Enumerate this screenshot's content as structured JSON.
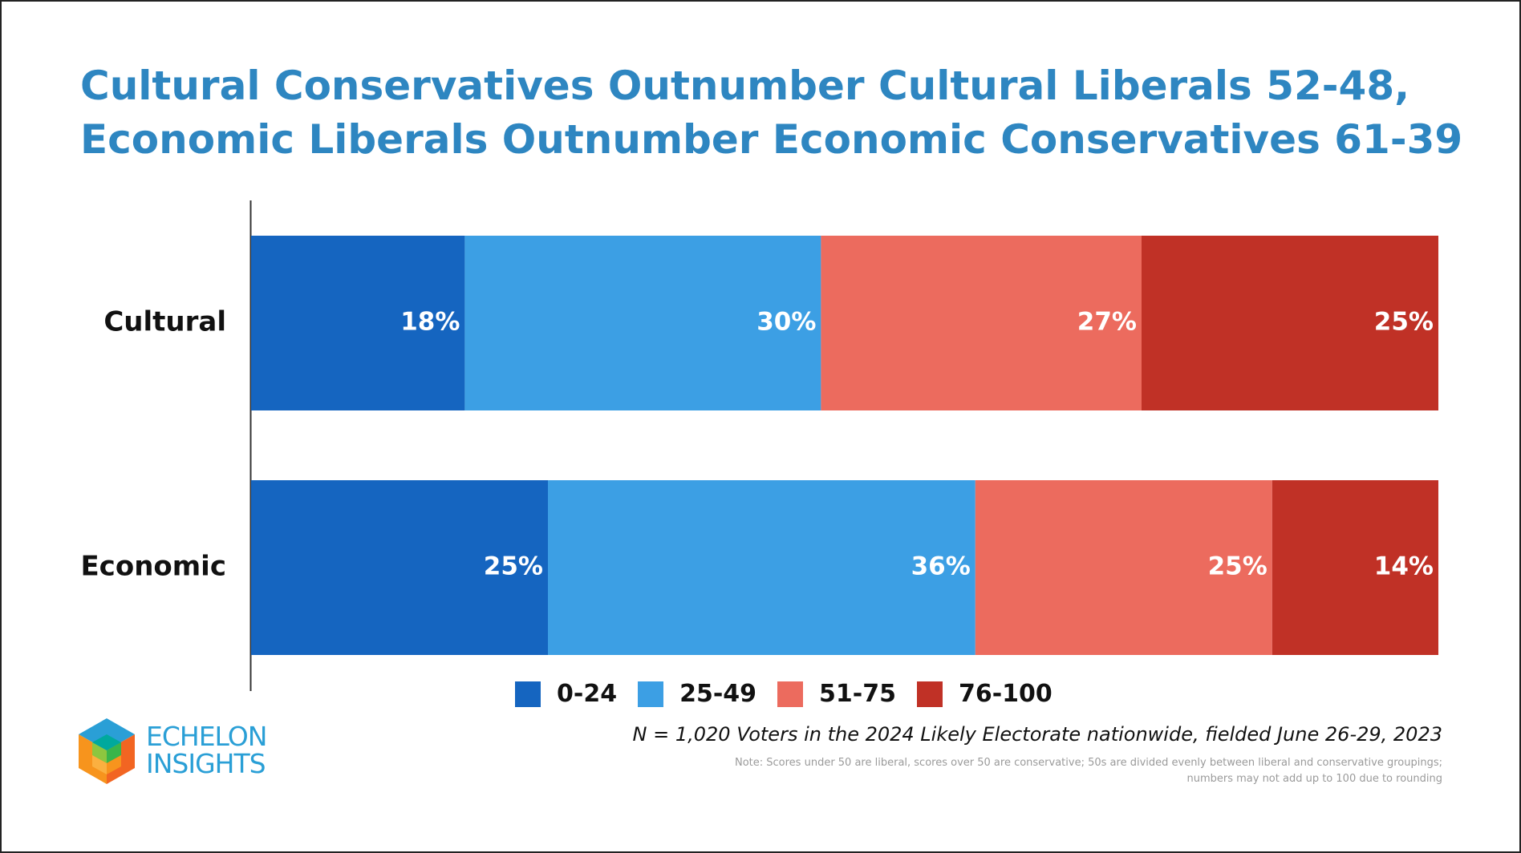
{
  "title": {
    "line1": "Cultural Conservatives Outnumber Cultural Liberals 52-48,",
    "line2": "Economic Liberals Outnumber Economic Conservatives 61-39"
  },
  "colors": {
    "title": "#2e86c1",
    "seg_0_24": "#1565c0",
    "seg_25_49": "#3c9fe4",
    "seg_51_75": "#ec6b5e",
    "seg_76_100": "#c03126",
    "logo_text": "#2a9fd6"
  },
  "chart_data": {
    "type": "bar",
    "orientation": "horizontal",
    "stacked": true,
    "categories": [
      "Cultural",
      "Economic"
    ],
    "series": [
      {
        "name": "0-24",
        "values": [
          18,
          25
        ],
        "labels": [
          "18%",
          "25%"
        ],
        "color": "#1565c0"
      },
      {
        "name": "25-49",
        "values": [
          30,
          36
        ],
        "labels": [
          "30%",
          "36%"
        ],
        "color": "#3c9fe4"
      },
      {
        "name": "51-75",
        "values": [
          27,
          25
        ],
        "labels": [
          "27%",
          "25%"
        ],
        "color": "#ec6b5e"
      },
      {
        "name": "76-100",
        "values": [
          25,
          14
        ],
        "labels": [
          "25%",
          "14%"
        ],
        "color": "#c03126"
      }
    ],
    "xlim": [
      0,
      100
    ],
    "grid": false,
    "legend_position": "bottom-center"
  },
  "legend": {
    "items": [
      {
        "label": "0-24",
        "color": "#1565c0"
      },
      {
        "label": "25-49",
        "color": "#3c9fe4"
      },
      {
        "label": "51-75",
        "color": "#ec6b5e"
      },
      {
        "label": "76-100",
        "color": "#c03126"
      }
    ]
  },
  "source": "N = 1,020 Voters in the 2024 Likely Electorate nationwide, fielded June 26-29, 2023",
  "note": {
    "line1": "Note: Scores under 50 are liberal, scores over 50 are conservative; 50s are divided evenly between liberal and conservative groupings;",
    "line2": "numbers may not add up to 100 due to rounding"
  },
  "logo": {
    "line1": "ECHELON",
    "line2": "INSIGHTS"
  }
}
